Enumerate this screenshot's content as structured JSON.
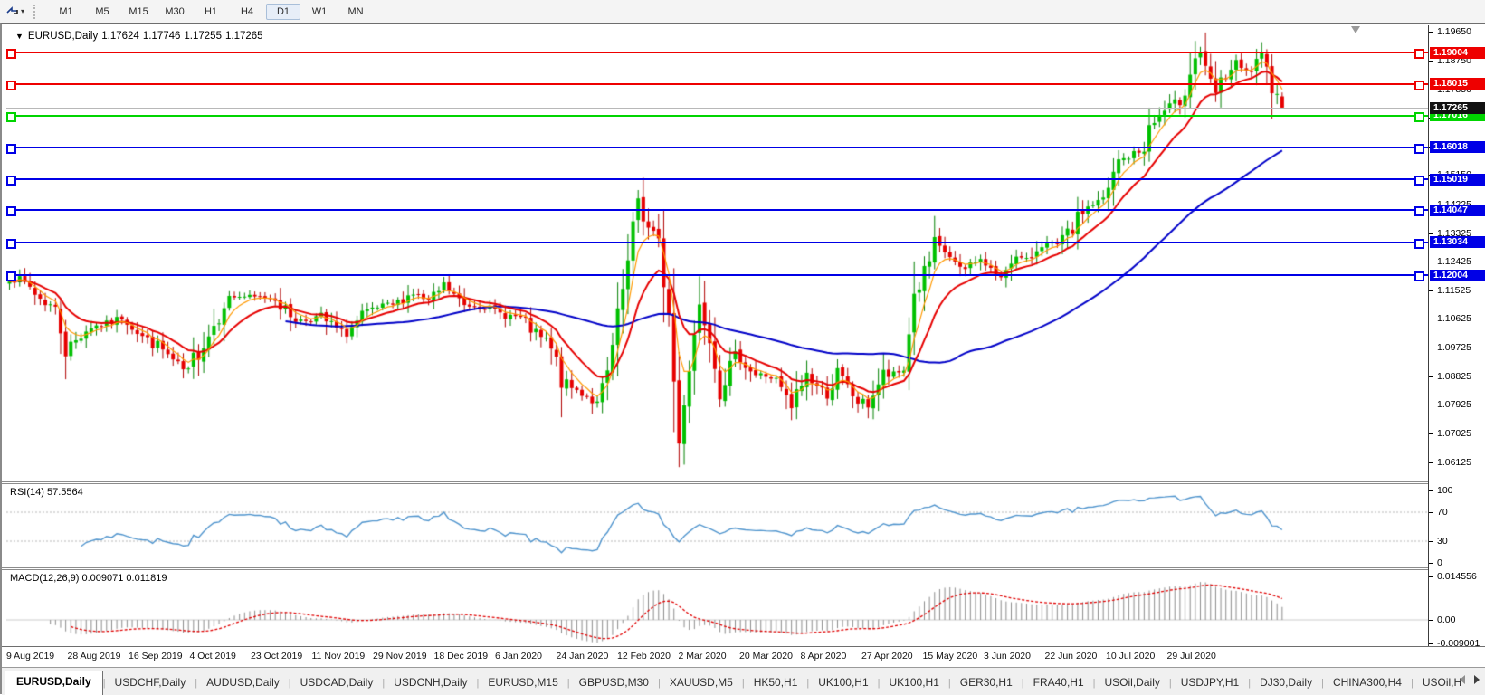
{
  "toolbar": {
    "timeframes": [
      "M1",
      "M5",
      "M15",
      "M30",
      "H1",
      "H4",
      "D1",
      "W1",
      "MN"
    ],
    "active_timeframe": "D1"
  },
  "title": {
    "symbol": "EURUSD,Daily",
    "open": "1.17624",
    "high": "1.17746",
    "low": "1.17255",
    "close": "1.17265"
  },
  "chart": {
    "price_scale": {
      "ticks": [
        "1.19650",
        "1.18750",
        "1.17850",
        "1.16950",
        "1.16050",
        "1.15150",
        "1.14225",
        "1.13325",
        "1.12425",
        "1.11525",
        "1.10625",
        "1.09725",
        "1.08825",
        "1.07925",
        "1.07025",
        "1.06125"
      ]
    },
    "hlines": [
      {
        "label": "1.19004",
        "value": 1.19004,
        "color": "#ee0000",
        "kind": "resistance"
      },
      {
        "label": "1.18015",
        "value": 1.18015,
        "color": "#ee0000",
        "kind": "resistance"
      },
      {
        "label": "1.17016",
        "value": 1.17016,
        "color": "#00d500",
        "kind": "support"
      },
      {
        "label": "1.16018",
        "value": 1.16018,
        "color": "#0000e6",
        "kind": "support"
      },
      {
        "label": "1.15019",
        "value": 1.15019,
        "color": "#0000e6",
        "kind": "support"
      },
      {
        "label": "1.14047",
        "value": 1.14047,
        "color": "#0000e6",
        "kind": "support"
      },
      {
        "label": "1.13034",
        "value": 1.13034,
        "color": "#0000e6",
        "kind": "support"
      },
      {
        "label": "1.12004",
        "value": 1.12004,
        "color": "#0000e6",
        "kind": "support"
      }
    ],
    "current_price": {
      "label": "1.17265",
      "value": 1.17265,
      "line_color": "#b8b8b8",
      "badge_bg": "#111111"
    }
  },
  "rsi": {
    "label": "RSI(14) 57.5564",
    "name": "RSI",
    "period": 14,
    "value": 57.5564,
    "ticks": [
      "100",
      "70",
      "30",
      "0"
    ],
    "levels": [
      70,
      30
    ],
    "line_color": "#4f94cd"
  },
  "macd": {
    "label": "MACD(12,26,9) 0.009071 0.011819",
    "fast": 12,
    "slow": 26,
    "signal": 9,
    "macd_value": 0.009071,
    "signal_value": 0.011819,
    "ticks": [
      "0.014556",
      "0.00",
      "-0.009001"
    ],
    "histogram_color": "#8c8c8c",
    "signal_color": "#e00000"
  },
  "x_axis": {
    "dates": [
      "9 Aug 2019",
      "28 Aug 2019",
      "16 Sep 2019",
      "4 Oct 2019",
      "23 Oct 2019",
      "11 Nov 2019",
      "29 Nov 2019",
      "18 Dec 2019",
      "6 Jan 2020",
      "24 Jan 2020",
      "12 Feb 2020",
      "2 Mar 2020",
      "20 Mar 2020",
      "8 Apr 2020",
      "27 Apr 2020",
      "15 May 2020",
      "3 Jun 2020",
      "22 Jun 2020",
      "10 Jul 2020",
      "29 Jul 2020"
    ]
  },
  "tabs": {
    "active_index": 0,
    "items": [
      "EURUSD,Daily",
      "USDCHF,Daily",
      "AUDUSD,Daily",
      "USDCAD,Daily",
      "USDCNH,Daily",
      "EURUSD,M15",
      "GBPUSD,M30",
      "XAUUSD,M5",
      "HK50,H1",
      "UK100,H1",
      "UK100,H1",
      "GER30,H1",
      "FRA40,H1",
      "USOil,Daily",
      "USDJPY,H1",
      "DJ30,Daily",
      "CHINA300,H4",
      "USOil,H"
    ],
    "scroll_left": "left",
    "scroll_right": "right"
  },
  "chart_data": {
    "type": "candlestick",
    "symbol": "EURUSD",
    "timeframe": "Daily",
    "title": "EURUSD,Daily",
    "current_ohlc": {
      "open": 1.17624,
      "high": 1.17746,
      "low": 1.17255,
      "close": 1.17265
    },
    "n_bars": 250,
    "x_tick_labels": [
      "9 Aug 2019",
      "28 Aug 2019",
      "16 Sep 2019",
      "4 Oct 2019",
      "23 Oct 2019",
      "11 Nov 2019",
      "29 Nov 2019",
      "18 Dec 2019",
      "6 Jan 2020",
      "24 Jan 2020",
      "12 Feb 2020",
      "2 Mar 2020",
      "20 Mar 2020",
      "8 Apr 2020",
      "27 Apr 2020",
      "15 May 2020",
      "3 Jun 2020",
      "22 Jun 2020",
      "10 Jul 2020",
      "29 Jul 2020"
    ],
    "y_axis": {
      "min": 1.06125,
      "max": 1.1965,
      "tick_step": 0.009
    },
    "bid": 1.17265,
    "horizontal_levels": [
      1.19004,
      1.18015,
      1.17016,
      1.16018,
      1.15019,
      1.14047,
      1.13034,
      1.12004
    ],
    "close_path_anchors": [
      [
        0,
        1.1195
      ],
      [
        4,
        1.1165
      ],
      [
        9,
        1.1085
      ],
      [
        11,
        1.0975
      ],
      [
        16,
        1.1035
      ],
      [
        22,
        1.1065
      ],
      [
        27,
        1.1
      ],
      [
        35,
        1.089
      ],
      [
        38,
        1.099
      ],
      [
        42,
        1.1125
      ],
      [
        46,
        1.1135
      ],
      [
        52,
        1.1125
      ],
      [
        57,
        1.105
      ],
      [
        61,
        1.1075
      ],
      [
        65,
        1.1005
      ],
      [
        69,
        1.1075
      ],
      [
        75,
        1.111
      ],
      [
        79,
        1.114
      ],
      [
        82,
        1.112
      ],
      [
        85,
        1.116
      ],
      [
        89,
        1.111
      ],
      [
        94,
        1.1095
      ],
      [
        100,
        1.106
      ],
      [
        105,
        1.099
      ],
      [
        108,
        1.087
      ],
      [
        112,
        1.083
      ],
      [
        115,
        1.079
      ],
      [
        117,
        1.0895
      ],
      [
        121,
        1.122
      ],
      [
        123,
        1.145
      ],
      [
        125,
        1.135
      ],
      [
        127,
        1.128
      ],
      [
        129,
        1.107
      ],
      [
        131,
        1.068
      ],
      [
        132,
        1.082
      ],
      [
        135,
        1.11
      ],
      [
        137,
        1.103
      ],
      [
        139,
        1.085
      ],
      [
        143,
        1.095
      ],
      [
        146,
        1.089
      ],
      [
        150,
        1.087
      ],
      [
        153,
        1.0785
      ],
      [
        156,
        1.088
      ],
      [
        160,
        1.083
      ],
      [
        162,
        1.088
      ],
      [
        166,
        1.081
      ],
      [
        168,
        1.079
      ],
      [
        171,
        1.088
      ],
      [
        175,
        1.09
      ],
      [
        177,
        1.113
      ],
      [
        181,
        1.129
      ],
      [
        184,
        1.1255
      ],
      [
        186,
        1.121
      ],
      [
        189,
        1.125
      ],
      [
        192,
        1.122
      ],
      [
        193,
        1.1185
      ],
      [
        196,
        1.1255
      ],
      [
        199,
        1.1245
      ],
      [
        201,
        1.13
      ],
      [
        205,
        1.129
      ],
      [
        207,
        1.133
      ],
      [
        210,
        1.14
      ],
      [
        214,
        1.144
      ],
      [
        217,
        1.155
      ],
      [
        221,
        1.159
      ],
      [
        223,
        1.166
      ],
      [
        226,
        1.171
      ],
      [
        229,
        1.1755
      ],
      [
        231,
        1.184
      ],
      [
        233,
        1.19
      ],
      [
        234,
        1.183
      ],
      [
        236,
        1.178
      ],
      [
        238,
        1.1825
      ],
      [
        240,
        1.1855
      ],
      [
        242,
        1.184
      ],
      [
        245,
        1.188
      ],
      [
        246,
        1.182
      ],
      [
        248,
        1.177
      ],
      [
        249,
        1.17265
      ]
    ],
    "overlays": [
      {
        "type": "ema",
        "period": 5,
        "color": "#ff9900"
      },
      {
        "type": "ema",
        "period": 13,
        "color": "#e60000"
      },
      {
        "type": "sma",
        "period": 55,
        "color": "#0000c8"
      }
    ],
    "indicators": [
      {
        "type": "rsi",
        "period": 14,
        "last_value": 57.5564,
        "range": [
          0,
          100
        ],
        "levels": [
          30,
          70
        ],
        "color": "#4f94cd"
      },
      {
        "type": "macd",
        "fast": 12,
        "slow": 26,
        "signal": 9,
        "last_macd": 0.009071,
        "last_signal": 0.011819,
        "y_range": [
          -0.009001,
          0.014556
        ],
        "histogram_color": "#8c8c8c",
        "signal_color": "#e00000"
      }
    ],
    "candle_colors": {
      "up_fill": "#00c000",
      "up_stroke": "#008000",
      "down_fill": "#e60000",
      "down_stroke": "#b00000"
    },
    "grid": false,
    "legend_position": "top-left"
  }
}
